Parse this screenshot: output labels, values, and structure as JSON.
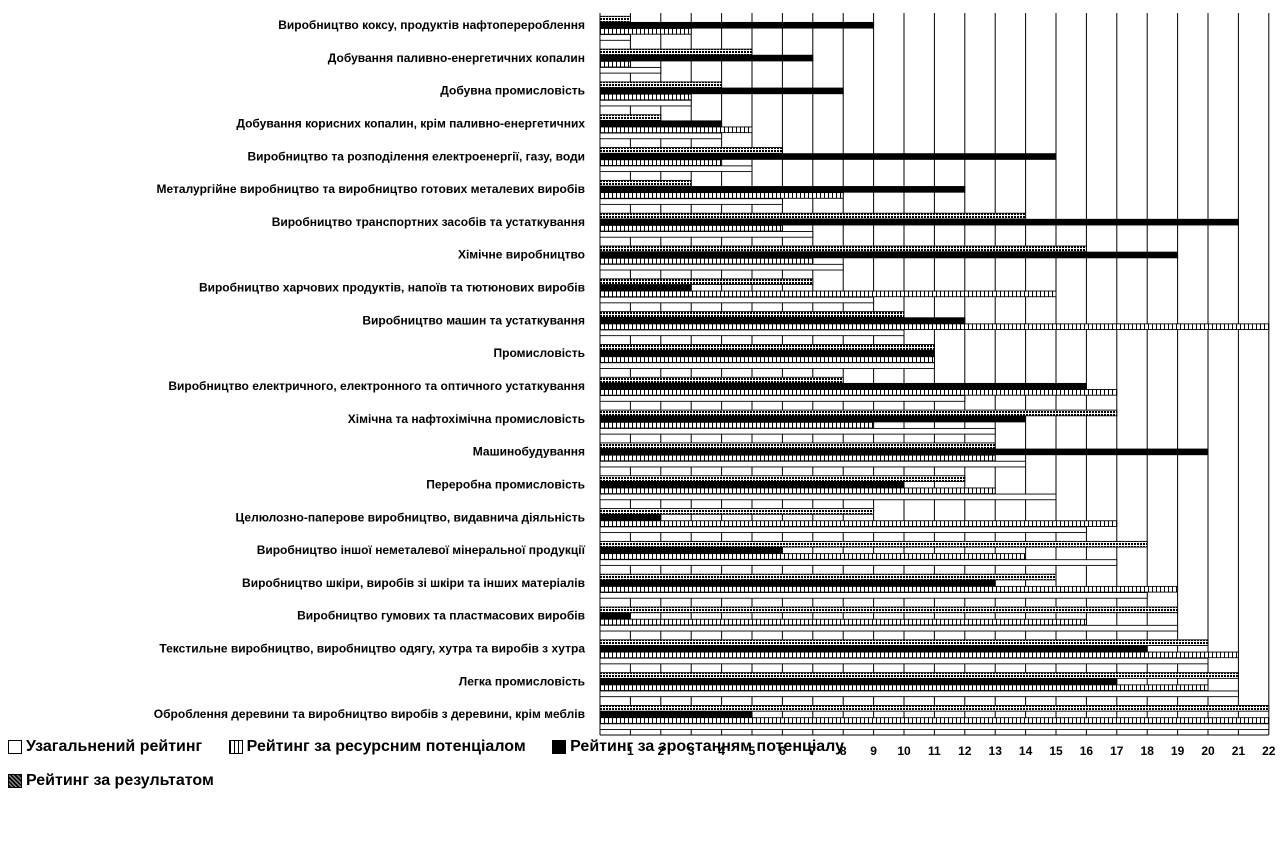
{
  "chart_data": {
    "type": "bar",
    "orientation": "horizontal",
    "grid": true,
    "legend_position": "bottom",
    "xlim": [
      0,
      22
    ],
    "x_ticks": [
      "1",
      "2",
      "3",
      "4",
      "5",
      "6",
      "7",
      "8",
      "9",
      "10",
      "11",
      "12",
      "13",
      "14",
      "15",
      "16",
      "17",
      "18",
      "19",
      "20",
      "21",
      "22"
    ],
    "categories": [
      "Виробництво коксу, продуктів нафтоперероблення",
      "Добування паливно-енергетичних копалин",
      "Добувна промисловість",
      "Добування корисних копалин, крім паливно-енергетичних",
      "Виробництво та розподілення електроенергії, газу, води",
      "Металургійне виробництво та виробництво готових металевих виробів",
      "Виробництво транспортних засобів та устаткування",
      "Хімічне виробництво",
      "Виробництво харчових продуктів, напоїв та тютюнових виробів",
      "Виробництво машин та устаткування",
      "Промисловість",
      "Виробництво електричного, електронного та оптичного устаткування",
      "Хімічна та нафтохімічна промисловість",
      "Машинобудування",
      "Переробна промисловість",
      "Целюлозно-паперове виробництво, видавнича діяльність",
      "Виробництво іншої неметалевої мінеральної продукції",
      "Виробництво шкіри, виробів зі шкіри та інших матеріалів",
      "Виробництво гумових та пластмасових виробів",
      "Текстильне виробництво, виробництво одягу, хутра та виробів з хутра",
      "Легка промисловість",
      "Оброблення деревини та виробництво виробів з деревини, крім меблів"
    ],
    "series": [
      {
        "name": "Рейтинг за результатом",
        "pattern": "dense",
        "values": [
          1,
          5,
          4,
          2,
          6,
          3,
          14,
          16,
          7,
          10,
          11,
          8,
          17,
          13,
          12,
          9,
          18,
          15,
          19,
          20,
          21,
          22
        ]
      },
      {
        "name": "Рейтинг за зростанням потенціалу",
        "pattern": "solid",
        "values": [
          9,
          7,
          8,
          4,
          15,
          12,
          21,
          19,
          3,
          12,
          11,
          16,
          14,
          20,
          10,
          2,
          6,
          13,
          1,
          18,
          17,
          5
        ]
      },
      {
        "name": "Рейтинг за ресурсним потенціалом",
        "pattern": "bricks",
        "values": [
          3,
          1,
          3,
          5,
          4,
          8,
          6,
          7,
          15,
          22,
          11,
          17,
          9,
          13,
          13,
          17,
          14,
          19,
          16,
          21,
          20,
          22
        ]
      },
      {
        "name": "Узагальнений рейтинг",
        "pattern": "empty",
        "values": [
          1,
          2,
          3,
          4,
          5,
          6,
          7,
          8,
          9,
          10,
          11,
          12,
          13,
          14,
          15,
          16,
          17,
          18,
          19,
          20,
          21,
          22
        ]
      }
    ],
    "legend_order": [
      "Узагальнений рейтинг",
      "Рейтинг за ресурсним потенціалом",
      "Рейтинг за зростанням потенціалу",
      "Рейтинг за результатом"
    ]
  },
  "colors": {
    "bar_fill": "#ffffff",
    "bar_stroke": "#000000",
    "dense_dots": "#000000",
    "grid": "#000000"
  }
}
